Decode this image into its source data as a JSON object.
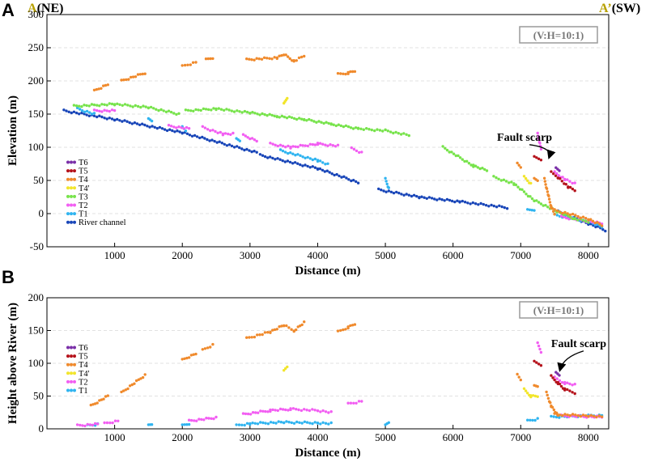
{
  "corners": {
    "left_prefix": "A",
    "left_suffix": "(NE)",
    "right_prefix": "A’",
    "right_suffix": "(SW)"
  },
  "colors": {
    "T6": "#7a2fa8",
    "T5": "#b5121b",
    "T4": "#f08a2c",
    "T4p": "#f2e52b",
    "T3": "#77e34b",
    "T2": "#f25ef2",
    "T1": "#2fb4f0",
    "River channel": "#1845b8",
    "grid": "#d8d8d8",
    "ratio_box": "#9a9a9a"
  },
  "chart_data": [
    {
      "panel": "A",
      "type": "scatter",
      "xlabel": "Distance (m)",
      "ylabel": "Elevation (m)",
      "xlim": [
        0,
        8300
      ],
      "ylim": [
        -50,
        300
      ],
      "xticks": [
        1000,
        2000,
        3000,
        4000,
        5000,
        6000,
        7000,
        8000
      ],
      "yticks": [
        -50,
        0,
        50,
        100,
        150,
        200,
        250,
        300
      ],
      "ratio_label": "(V:H=10:1)",
      "annotation": {
        "text": "Fault scarp",
        "x_text": 6650,
        "y_text": 110,
        "x_arrow": 7420,
        "y_arrow": 85
      },
      "legend": [
        "T6",
        "T5",
        "T4",
        "T4'",
        "T3",
        "T2",
        "T1",
        "River channel"
      ],
      "series": [
        {
          "name": "River channel",
          "segments": [
            [
              [
                250,
                155
              ],
              [
                1000,
                142
              ],
              [
                2000,
                122
              ],
              [
                3100,
                92
              ]
            ],
            [
              [
                3150,
                88
              ],
              [
                4000,
                68
              ],
              [
                4600,
                47
              ]
            ],
            [
              [
                4900,
                36
              ],
              [
                5500,
                25
              ],
              [
                6100,
                18
              ],
              [
                6800,
                9
              ]
            ],
            [
              [
                7550,
                3
              ],
              [
                8000,
                -15
              ],
              [
                8250,
                -25
              ]
            ]
          ]
        },
        {
          "name": "T1",
          "segments": [
            [
              [
                450,
                158
              ],
              [
                700,
                150
              ]
            ],
            [
              [
                1500,
                142
              ],
              [
                1550,
                140
              ]
            ],
            [
              [
                2000,
                130
              ],
              [
                2050,
                125
              ]
            ],
            [
              [
                2800,
                112
              ],
              [
                2850,
                110
              ]
            ],
            [
              [
                3450,
                95
              ],
              [
                4000,
                80
              ],
              [
                4150,
                74
              ]
            ],
            [
              [
                5000,
                52
              ],
              [
                5050,
                38
              ]
            ],
            [
              [
                7100,
                5
              ],
              [
                7200,
                6
              ]
            ],
            [
              [
                7500,
                -2
              ],
              [
                8000,
                -12
              ],
              [
                8200,
                -20
              ]
            ]
          ]
        },
        {
          "name": "T2",
          "segments": [
            [
              [
                700,
                155
              ],
              [
                1000,
                155
              ]
            ],
            [
              [
                1800,
                132
              ],
              [
                2100,
                128
              ]
            ],
            [
              [
                2300,
                130
              ],
              [
                2600,
                120
              ],
              [
                2750,
                120
              ]
            ],
            [
              [
                2900,
                118
              ],
              [
                3100,
                110
              ]
            ],
            [
              [
                3300,
                105
              ],
              [
                3600,
                100
              ],
              [
                4000,
                105
              ],
              [
                4300,
                102
              ]
            ],
            [
              [
                4500,
                98
              ],
              [
                4650,
                92
              ]
            ],
            [
              [
                7250,
                120
              ],
              [
                7300,
                98
              ]
            ],
            [
              [
                7500,
                62
              ],
              [
                7650,
                52
              ],
              [
                7800,
                45
              ]
            ],
            [
              [
                7600,
                -5
              ],
              [
                8200,
                -15
              ]
            ]
          ]
        },
        {
          "name": "T3",
          "segments": [
            [
              [
                400,
                162
              ],
              [
                1000,
                165
              ],
              [
                1500,
                160
              ],
              [
                1950,
                150
              ]
            ],
            [
              [
                2050,
                155
              ],
              [
                2500,
                158
              ],
              [
                3000,
                152
              ],
              [
                3400,
                147
              ],
              [
                3800,
                142
              ],
              [
                4200,
                135
              ],
              [
                4600,
                128
              ],
              [
                5000,
                125
              ],
              [
                5350,
                118
              ]
            ],
            [
              [
                5850,
                100
              ],
              [
                6300,
                72
              ],
              [
                6500,
                65
              ]
            ],
            [
              [
                6600,
                55
              ],
              [
                6900,
                45
              ],
              [
                7200,
                20
              ],
              [
                7500,
                5
              ],
              [
                7800,
                -8
              ],
              [
                8000,
                -12
              ]
            ]
          ]
        },
        {
          "name": "T4'",
          "segments": [
            [
              [
                3500,
                165
              ],
              [
                3550,
                175
              ]
            ],
            [
              [
                7050,
                55
              ],
              [
                7150,
                45
              ]
            ]
          ]
        },
        {
          "name": "T4",
          "segments": [
            [
              [
                700,
                185
              ],
              [
                900,
                195
              ]
            ],
            [
              [
                1100,
                200
              ],
              [
                1450,
                212
              ]
            ],
            [
              [
                2000,
                222
              ],
              [
                2200,
                228
              ]
            ],
            [
              [
                2350,
                232
              ],
              [
                2450,
                235
              ]
            ],
            [
              [
                2950,
                232
              ],
              [
                3400,
                235
              ],
              [
                3500,
                240
              ],
              [
                3650,
                230
              ],
              [
                3800,
                238
              ]
            ],
            [
              [
                4300,
                210
              ],
              [
                4450,
                212
              ],
              [
                4550,
                215
              ]
            ],
            [
              [
                6950,
                75
              ],
              [
                7000,
                70
              ]
            ],
            [
              [
                7200,
                52
              ],
              [
                7250,
                50
              ]
            ],
            [
              [
                7350,
                52
              ],
              [
                7450,
                10
              ],
              [
                7500,
                0
              ]
            ],
            [
              [
                7500,
                5
              ],
              [
                8000,
                -8
              ],
              [
                8200,
                -18
              ]
            ]
          ]
        },
        {
          "name": "T5",
          "segments": [
            [
              [
                7200,
                85
              ],
              [
                7300,
                82
              ]
            ],
            [
              [
                7450,
                62
              ],
              [
                7550,
                55
              ],
              [
                7700,
                40
              ],
              [
                7800,
                35
              ]
            ]
          ]
        },
        {
          "name": "T6",
          "segments": [
            [
              [
                7520,
                68
              ],
              [
                7570,
                65
              ]
            ]
          ]
        }
      ]
    },
    {
      "panel": "B",
      "type": "scatter",
      "xlabel": "Distance (m)",
      "ylabel": "Height above River (m)",
      "xlim": [
        0,
        8300
      ],
      "ylim": [
        0,
        200
      ],
      "xticks": [
        1000,
        2000,
        3000,
        4000,
        5000,
        6000,
        7000,
        8000
      ],
      "yticks": [
        0,
        50,
        100,
        150,
        200
      ],
      "ratio_label": "(V:H=10:1)",
      "annotation": {
        "text": "Fault scarp",
        "x_text": 7450,
        "y_text": 125,
        "x_arrow": 7580,
        "y_arrow": 90
      },
      "legend": [
        "T6",
        "T5",
        "T4",
        "T4'",
        "T2",
        "T1"
      ],
      "series": [
        {
          "name": "T1",
          "segments": [
            [
              [
                600,
                5
              ],
              [
                750,
                7
              ]
            ],
            [
              [
                1500,
                5
              ],
              [
                1550,
                7
              ]
            ],
            [
              [
                2000,
                5
              ],
              [
                2100,
                8
              ]
            ],
            [
              [
                2800,
                5
              ],
              [
                3000,
                8
              ],
              [
                3500,
                10
              ],
              [
                4000,
                9
              ],
              [
                4200,
                8
              ]
            ],
            [
              [
                5000,
                5
              ],
              [
                5050,
                10
              ]
            ],
            [
              [
                7100,
                12
              ],
              [
                7250,
                15
              ]
            ],
            [
              [
                7450,
                18
              ],
              [
                8000,
                20
              ],
              [
                8200,
                20
              ]
            ]
          ]
        },
        {
          "name": "T2",
          "segments": [
            [
              [
                450,
                5
              ],
              [
                750,
                7
              ]
            ],
            [
              [
                850,
                8
              ],
              [
                1050,
                12
              ]
            ],
            [
              [
                2100,
                12
              ],
              [
                2500,
                17
              ]
            ],
            [
              [
                2900,
                22
              ],
              [
                3300,
                28
              ],
              [
                3600,
                30
              ],
              [
                4000,
                28
              ],
              [
                4200,
                25
              ]
            ],
            [
              [
                4450,
                38
              ],
              [
                4650,
                42
              ]
            ],
            [
              [
                7250,
                130
              ],
              [
                7300,
                118
              ]
            ],
            [
              [
                7500,
                78
              ],
              [
                7650,
                70
              ],
              [
                7800,
                67
              ]
            ],
            [
              [
                7600,
                20
              ],
              [
                8200,
                18
              ]
            ]
          ]
        },
        {
          "name": "T4'",
          "segments": [
            [
              [
                3500,
                88
              ],
              [
                3550,
                95
              ]
            ],
            [
              [
                7050,
                60
              ],
              [
                7150,
                50
              ],
              [
                7250,
                50
              ]
            ]
          ]
        },
        {
          "name": "T4",
          "segments": [
            [
              [
                650,
                35
              ],
              [
                900,
                50
              ]
            ],
            [
              [
                1100,
                55
              ],
              [
                1450,
                82
              ]
            ],
            [
              [
                2000,
                105
              ],
              [
                2200,
                115
              ]
            ],
            [
              [
                2300,
                120
              ],
              [
                2450,
                128
              ]
            ],
            [
              [
                2950,
                138
              ],
              [
                3300,
                148
              ],
              [
                3500,
                158
              ],
              [
                3650,
                150
              ],
              [
                3800,
                162
              ]
            ],
            [
              [
                4300,
                148
              ],
              [
                4450,
                155
              ],
              [
                4550,
                160
              ]
            ],
            [
              [
                6950,
                82
              ],
              [
                7000,
                75
              ]
            ],
            [
              [
                7200,
                65
              ],
              [
                7250,
                65
              ]
            ],
            [
              [
                7380,
                55
              ],
              [
                7450,
                35
              ],
              [
                7550,
                20
              ]
            ],
            [
              [
                7500,
                22
              ],
              [
                8000,
                20
              ],
              [
                8200,
                18
              ]
            ]
          ]
        },
        {
          "name": "T5",
          "segments": [
            [
              [
                7200,
                102
              ],
              [
                7300,
                98
              ]
            ],
            [
              [
                7450,
                80
              ],
              [
                7550,
                70
              ],
              [
                7650,
                60
              ],
              [
                7800,
                55
              ]
            ]
          ]
        },
        {
          "name": "T6",
          "segments": [
            [
              [
                7520,
                85
              ],
              [
                7570,
                82
              ]
            ]
          ]
        }
      ]
    }
  ]
}
